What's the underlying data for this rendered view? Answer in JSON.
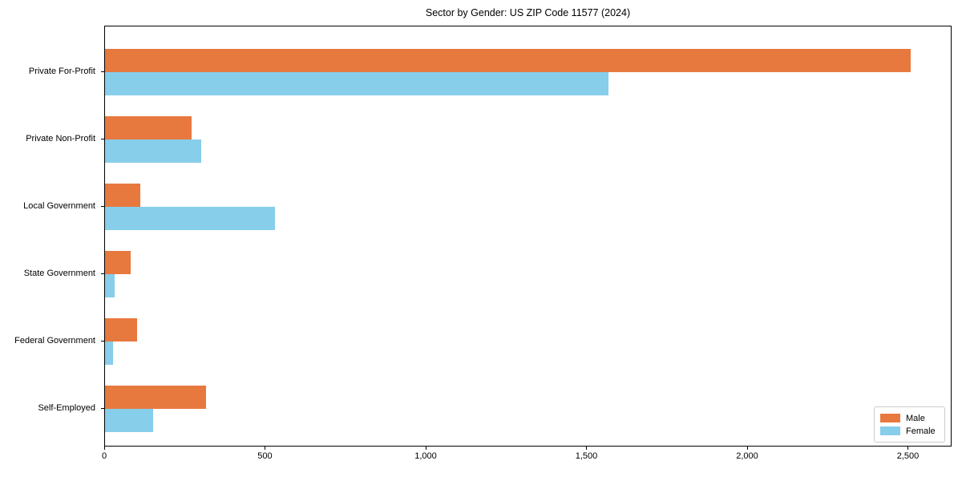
{
  "figure_title": "Sector by Gender: US ZIP Code 11577 (2024)",
  "colors": {
    "male": "#e8793e",
    "female": "#87ceeb",
    "axis": "#000000",
    "legend_border": "#cccccc",
    "background": "#ffffff"
  },
  "chart_data": {
    "type": "bar",
    "orientation": "horizontal",
    "title": "Sector by Gender: US ZIP Code 11577 (2024)",
    "xlabel": "",
    "ylabel": "",
    "grid": false,
    "legend_position": "lower right",
    "categories": [
      "Private For-Profit",
      "Private Non-Profit",
      "Local Government",
      "State Government",
      "Federal Government",
      "Self-Employed"
    ],
    "series": [
      {
        "name": "Male",
        "color": "#e8793e",
        "values": [
          2510,
          270,
          110,
          80,
          100,
          315
        ]
      },
      {
        "name": "Female",
        "color": "#87ceeb",
        "values": [
          1570,
          300,
          530,
          30,
          25,
          150
        ]
      }
    ],
    "xlim": [
      0,
      2636
    ],
    "xticks": [
      {
        "value": 0,
        "label": "0"
      },
      {
        "value": 500,
        "label": "500"
      },
      {
        "value": 1000,
        "label": "1,000"
      },
      {
        "value": 1500,
        "label": "1,500"
      },
      {
        "value": 2000,
        "label": "2,000"
      },
      {
        "value": 2500,
        "label": "2,500"
      }
    ]
  }
}
